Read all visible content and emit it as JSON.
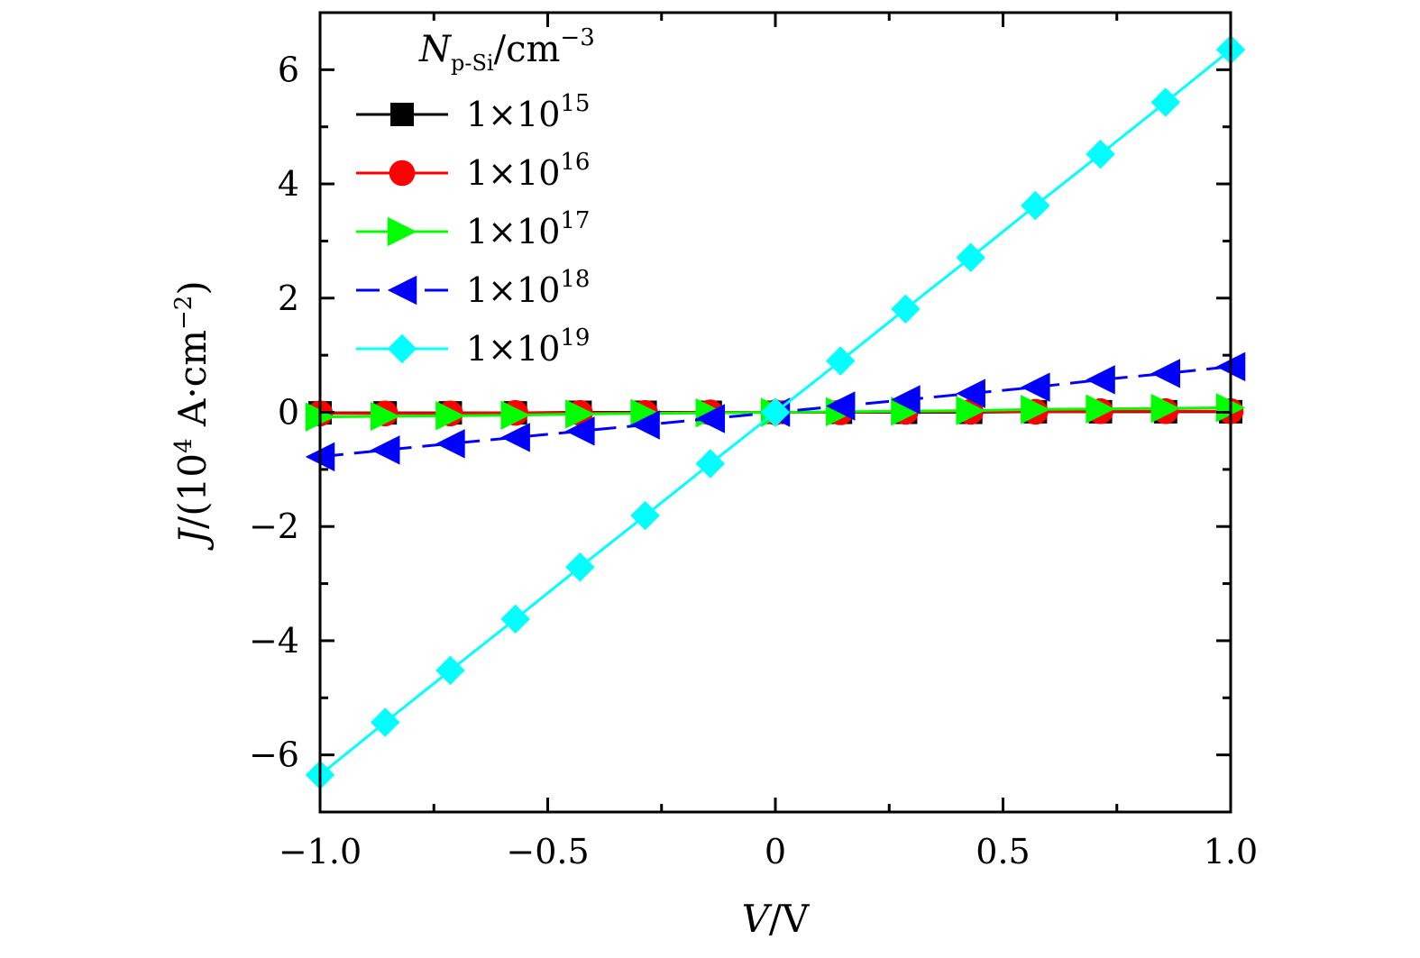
{
  "chart_data": {
    "type": "line",
    "xlabel_var": "V",
    "xlabel_unit": "/V",
    "ylabel_var": "J",
    "ylabel_unit": "/(10",
    "ylabel_exp": "4",
    "ylabel_unit2": " A·cm",
    "ylabel_exp2": "−2",
    "ylabel_close": ")",
    "xlim": [
      -1.0,
      1.0
    ],
    "ylim": [
      -7,
      7
    ],
    "x_ticks": [
      -1.0,
      -0.5,
      0,
      0.5,
      1.0
    ],
    "x_tick_labels": [
      "−1.0",
      "−0.5",
      "0",
      "0.5",
      "1.0"
    ],
    "y_ticks": [
      -6,
      -4,
      -2,
      0,
      2,
      4,
      6
    ],
    "y_tick_labels": [
      "−6",
      "−4",
      "−2",
      "0",
      "2",
      "4",
      "6"
    ],
    "grid": false,
    "legend_placement": "top-left",
    "legend_title_var": "N",
    "legend_title_sub": "p-Si",
    "legend_title_unit": "/cm",
    "legend_title_exp": "−3",
    "x": [
      -1.0,
      -0.857,
      -0.714,
      -0.571,
      -0.429,
      -0.286,
      -0.143,
      0,
      0.143,
      0.286,
      0.429,
      0.571,
      0.714,
      0.857,
      1.0
    ],
    "series": [
      {
        "name_base": "1×10",
        "name_exp": "15",
        "color": "#000000",
        "marker": "square",
        "dash": "solid",
        "values": [
          -0.01,
          -0.01,
          -0.01,
          -0.01,
          0,
          0,
          0,
          0,
          0,
          0,
          0,
          0.01,
          0.01,
          0.01,
          0.01
        ]
      },
      {
        "name_base": "1×10",
        "name_exp": "16",
        "color": "#ff0000",
        "marker": "circle",
        "dash": "solid",
        "values": [
          -0.02,
          -0.02,
          -0.02,
          -0.01,
          -0.01,
          -0.01,
          0,
          0,
          0,
          0.01,
          0.01,
          0.01,
          0.02,
          0.02,
          0.02
        ]
      },
      {
        "name_base": "1×10",
        "name_exp": "17",
        "color": "#00ff00",
        "marker": "triangle-right",
        "dash": "solid",
        "values": [
          -0.08,
          -0.07,
          -0.06,
          -0.05,
          -0.03,
          -0.02,
          -0.01,
          0,
          0.01,
          0.02,
          0.03,
          0.05,
          0.06,
          0.07,
          0.08
        ]
      },
      {
        "name_base": "1×10",
        "name_exp": "18",
        "color": "#0000ff",
        "marker": "triangle-left",
        "dash": "dashed",
        "values": [
          -0.78,
          -0.66,
          -0.55,
          -0.44,
          -0.33,
          -0.22,
          -0.11,
          0,
          0.11,
          0.22,
          0.33,
          0.44,
          0.57,
          0.68,
          0.8
        ]
      },
      {
        "name_base": "1×10",
        "name_exp": "19",
        "color": "#00ffff",
        "marker": "diamond",
        "dash": "solid",
        "values": [
          -6.35,
          -5.43,
          -4.52,
          -3.62,
          -2.71,
          -1.81,
          -0.9,
          0,
          0.9,
          1.81,
          2.71,
          3.62,
          4.52,
          5.43,
          6.35
        ]
      }
    ]
  }
}
